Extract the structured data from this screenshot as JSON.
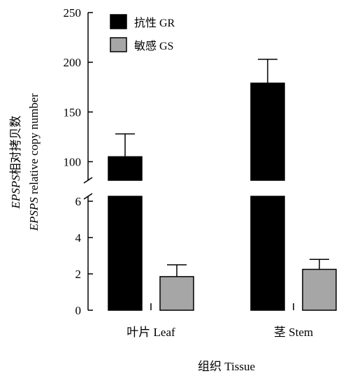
{
  "chart_data": {
    "type": "bar",
    "categories": [
      "叶片 Leaf",
      "茎 Stem"
    ],
    "series": [
      {
        "name": "抗性 GR",
        "values": [
          105,
          179
        ],
        "errors": [
          23,
          24
        ],
        "color": "#000000"
      },
      {
        "name": "敏感 GS",
        "values": [
          1.85,
          2.25
        ],
        "errors": [
          0.65,
          0.55
        ],
        "color": "#a6a6a6"
      }
    ],
    "xlabel": "组织 Tissue",
    "ylabel": {
      "italic_prefix": "EPSPS",
      "line1_rest": "相对拷贝数",
      "line2_rest": " relative copy number"
    },
    "y_axis": {
      "broken": true,
      "lower_segment": {
        "range": [
          0,
          6
        ],
        "ticks": [
          0,
          2,
          4,
          6
        ]
      },
      "upper_segment": {
        "range": [
          75,
          250
        ],
        "ticks": [
          100,
          150,
          200,
          250
        ]
      }
    },
    "legend_position": "top-left",
    "grid": false
  }
}
